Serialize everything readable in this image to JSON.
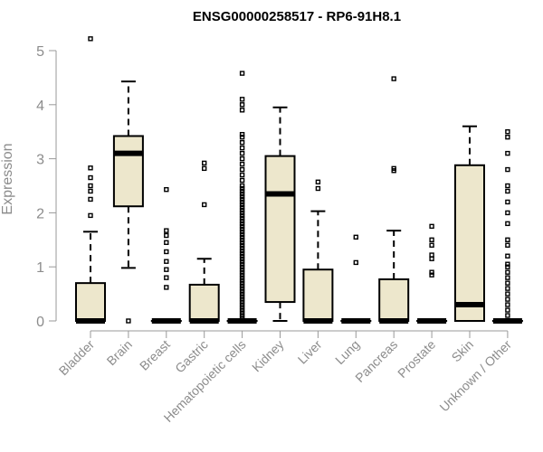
{
  "chart_data": {
    "type": "box",
    "title": "ENSG00000258517 - RP6-91H8.1",
    "xlabel": "",
    "ylabel": "Expression",
    "ylim": [
      0,
      5.2
    ],
    "yticks": [
      0,
      1,
      2,
      3,
      4,
      5
    ],
    "grid": false,
    "box_color": "#ede7cc",
    "categories": [
      "Bladder",
      "Brain",
      "Breast",
      "Gastric",
      "Hematopoietic cells",
      "Kidney",
      "Liver",
      "Lung",
      "Pancreas",
      "Prostate",
      "Skin",
      "Unknown / Other"
    ],
    "boxes": [
      {
        "q1": 0,
        "median": 0,
        "q3": 0.7,
        "whisker_low": 0,
        "whisker_high": 1.65,
        "outliers": [
          1.95,
          2.25,
          2.4,
          2.5,
          2.65,
          2.83,
          5.22
        ]
      },
      {
        "q1": 2.12,
        "median": 3.1,
        "q3": 3.42,
        "whisker_low": 0.98,
        "whisker_high": 4.43,
        "outliers": [
          0
        ]
      },
      {
        "q1": 0,
        "median": 0,
        "q3": 0,
        "whisker_low": 0,
        "whisker_high": 0,
        "outliers": [
          0.62,
          0.8,
          0.95,
          1.1,
          1.28,
          1.45,
          1.58,
          1.67,
          2.43
        ]
      },
      {
        "q1": 0,
        "median": 0,
        "q3": 0.67,
        "whisker_low": 0,
        "whisker_high": 1.15,
        "outliers": [
          2.15,
          2.82,
          2.92
        ]
      },
      {
        "q1": 0,
        "median": 0,
        "q3": 0,
        "whisker_low": 0,
        "whisker_high": 0,
        "outliers": [
          0.05,
          0.1,
          0.15,
          0.2,
          0.25,
          0.3,
          0.35,
          0.4,
          0.45,
          0.5,
          0.55,
          0.6,
          0.65,
          0.7,
          0.75,
          0.8,
          0.85,
          0.9,
          0.95,
          1.0,
          1.05,
          1.1,
          1.15,
          1.2,
          1.25,
          1.3,
          1.35,
          1.4,
          1.45,
          1.5,
          1.55,
          1.6,
          1.65,
          1.7,
          1.75,
          1.8,
          1.85,
          1.9,
          1.95,
          2.0,
          2.05,
          2.1,
          2.15,
          2.2,
          2.25,
          2.3,
          2.35,
          2.4,
          2.45,
          2.5,
          2.6,
          2.7,
          2.8,
          2.9,
          3.0,
          3.1,
          3.2,
          3.3,
          3.4,
          3.45,
          3.9,
          4.0,
          4.1,
          4.58
        ]
      },
      {
        "q1": 0.35,
        "median": 2.35,
        "q3": 3.05,
        "whisker_low": 0,
        "whisker_high": 3.95,
        "outliers": []
      },
      {
        "q1": 0,
        "median": 0,
        "q3": 0.95,
        "whisker_low": 0,
        "whisker_high": 2.03,
        "outliers": [
          2.45,
          2.57
        ]
      },
      {
        "q1": 0,
        "median": 0,
        "q3": 0,
        "whisker_low": 0,
        "whisker_high": 0,
        "outliers": [
          1.08,
          1.55
        ]
      },
      {
        "q1": 0,
        "median": 0,
        "q3": 0.77,
        "whisker_low": 0,
        "whisker_high": 1.67,
        "outliers": [
          2.78,
          2.82,
          4.48
        ]
      },
      {
        "q1": 0,
        "median": 0,
        "q3": 0,
        "whisker_low": 0,
        "whisker_high": 0,
        "outliers": [
          0.85,
          0.9,
          1.15,
          1.22,
          1.4,
          1.5,
          1.75
        ]
      },
      {
        "q1": 0,
        "median": 0.3,
        "q3": 2.88,
        "whisker_low": 0,
        "whisker_high": 3.6,
        "outliers": []
      },
      {
        "q1": 0,
        "median": 0,
        "q3": 0,
        "whisker_low": 0,
        "whisker_high": 0,
        "outliers": [
          0.1,
          0.2,
          0.3,
          0.4,
          0.5,
          0.6,
          0.7,
          0.8,
          0.9,
          1.0,
          1.05,
          1.2,
          1.4,
          1.5,
          1.8,
          2.0,
          2.2,
          2.4,
          2.5,
          2.8,
          3.1,
          3.4,
          3.5
        ]
      }
    ]
  }
}
